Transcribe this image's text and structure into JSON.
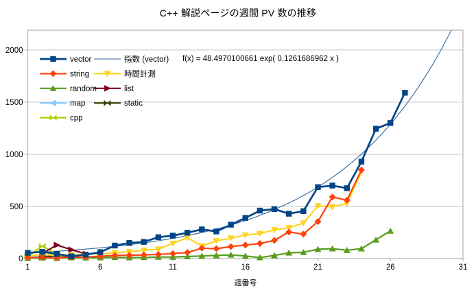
{
  "title": "C++ 解説ページの週間 PV 数の推移",
  "equation_label": "f(x) = 48.4970100661 exp( 0.1261686962 x )",
  "chart_data": {
    "type": "line",
    "title": "C++ 解説ページの週間 PV 数の推移",
    "xlabel": "週番号",
    "ylabel": "",
    "xlim": [
      1,
      31
    ],
    "ylim": [
      0,
      2190
    ],
    "x_ticks": [
      1,
      6,
      11,
      16,
      21,
      26,
      31
    ],
    "y_ticks": [
      0,
      500,
      1000,
      1500,
      2000
    ],
    "grid": "horizontal-major",
    "legend_position": "top-left-inside",
    "colors": {
      "grid": "#c6c6c6",
      "border": "#b3b3b3",
      "text": "#000000"
    },
    "trendline": {
      "name": "指数 (vector)",
      "of_series": "vector",
      "type": "exponential",
      "a": 48.4970100661,
      "b": 0.1261686962,
      "formula": "f(x) = 48.4970100661 exp( 0.1261686962 x )",
      "color": "#33669c",
      "x_range": [
        1,
        31
      ]
    },
    "series": [
      {
        "name": "vector",
        "color": "#004586",
        "marker": "square",
        "x": [
          1,
          2,
          3,
          4,
          5,
          6,
          7,
          8,
          9,
          10,
          11,
          12,
          13,
          14,
          15,
          16,
          17,
          18,
          19,
          20,
          21,
          22,
          23,
          24,
          25,
          26,
          27
        ],
        "values": [
          55,
          65,
          45,
          22,
          38,
          62,
          125,
          150,
          160,
          205,
          220,
          248,
          280,
          260,
          325,
          390,
          460,
          475,
          430,
          455,
          685,
          700,
          675,
          930,
          1245,
          1300,
          1590
        ]
      },
      {
        "name": "string",
        "color": "#ff420e",
        "marker": "diamond",
        "x": [
          1,
          2,
          3,
          4,
          5,
          6,
          7,
          8,
          9,
          10,
          11,
          12,
          13,
          14,
          15,
          16,
          17,
          18,
          19,
          20,
          21,
          22,
          23,
          24
        ],
        "values": [
          10,
          12,
          8,
          12,
          15,
          22,
          30,
          32,
          35,
          40,
          48,
          58,
          100,
          95,
          115,
          130,
          145,
          175,
          255,
          235,
          355,
          590,
          560,
          850
        ]
      },
      {
        "name": "random",
        "color": "#579d1c",
        "marker": "triangle-up",
        "x": [
          1,
          2,
          3,
          4,
          5,
          6,
          7,
          8,
          9,
          10,
          11,
          12,
          13,
          14,
          15,
          16,
          17,
          18,
          19,
          20,
          21,
          22,
          23,
          24,
          25,
          26
        ],
        "values": [
          5,
          8,
          5,
          10,
          8,
          10,
          12,
          10,
          12,
          15,
          15,
          20,
          25,
          30,
          35,
          25,
          10,
          30,
          55,
          60,
          90,
          95,
          80,
          95,
          180,
          265
        ]
      },
      {
        "name": "map",
        "color": "#83caff",
        "marker": "triangle-left",
        "x": [
          1,
          2,
          3
        ],
        "values": [
          10,
          25,
          15
        ]
      },
      {
        "name": "cpp",
        "color": "#aecf00",
        "marker": "bowtie",
        "x": [
          1,
          2,
          3
        ],
        "values": [
          20,
          120,
          45
        ]
      },
      {
        "name": "時間計測",
        "color": "#ffd320",
        "marker": "triangle-down",
        "x": [
          1,
          2,
          3,
          4,
          5,
          6,
          7,
          8,
          9,
          10,
          11,
          12,
          13,
          14,
          15,
          16,
          17,
          18,
          19,
          20,
          21,
          22,
          23,
          24
        ],
        "values": [
          25,
          40,
          30,
          35,
          40,
          45,
          55,
          65,
          80,
          90,
          145,
          200,
          120,
          170,
          195,
          225,
          240,
          275,
          295,
          340,
          505,
          495,
          530,
          830
        ]
      },
      {
        "name": "list",
        "color": "#7e0021",
        "marker": "arrow-right",
        "x": [
          2,
          3,
          4,
          5
        ],
        "values": [
          50,
          130,
          85,
          45
        ]
      },
      {
        "name": "static",
        "color": "#314004",
        "marker": "bowtie",
        "x": [
          2,
          3,
          4
        ],
        "values": [
          15,
          30,
          20
        ]
      }
    ],
    "z_order": [
      "map",
      "static",
      "cpp",
      "list",
      "random",
      "時間計測",
      "string",
      "vector"
    ],
    "legend_columns": [
      [
        "vector",
        "string",
        "random",
        "map",
        "cpp"
      ],
      [
        "指数 (vector)",
        "時間計測",
        "list",
        "static"
      ]
    ]
  }
}
